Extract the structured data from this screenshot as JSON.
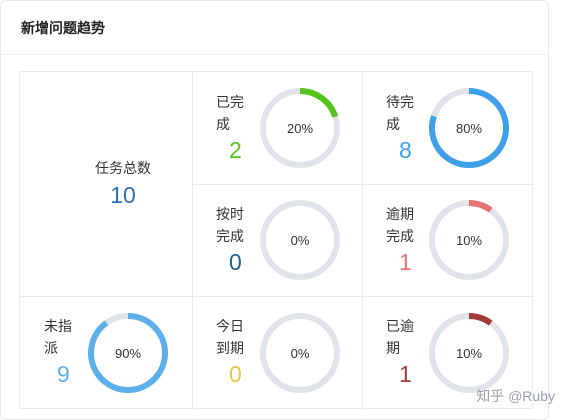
{
  "panel": {
    "title": "新增问题趋势"
  },
  "total": {
    "label": "任务总数",
    "value": "10",
    "color": "#2f6fb5"
  },
  "cells": [
    {
      "key": "completed",
      "label": "已完\n成",
      "value": "2",
      "percent": 20,
      "percent_label": "20%",
      "color": "#52c41a"
    },
    {
      "key": "pending",
      "label": "待完\n成",
      "value": "8",
      "percent": 80,
      "percent_label": "80%",
      "color": "#3fa0ea"
    },
    {
      "key": "on_time",
      "label": "按时\n完成",
      "value": "0",
      "percent": 0,
      "percent_label": "0%",
      "color": "#1f5f8f"
    },
    {
      "key": "overdue_done",
      "label": "逾期\n完成",
      "value": "1",
      "percent": 10,
      "percent_label": "10%",
      "color": "#e57373"
    },
    {
      "key": "unassigned",
      "label": "未指\n派",
      "value": "9",
      "percent": 90,
      "percent_label": "90%",
      "color": "#5db0ec"
    },
    {
      "key": "due_today",
      "label": "今日\n到期",
      "value": "0",
      "percent": 0,
      "percent_label": "0%",
      "color": "#e8c53a"
    },
    {
      "key": "overdue",
      "label": "已逾\n期",
      "value": "1",
      "percent": 10,
      "percent_label": "10%",
      "color": "#a33a3a"
    }
  ],
  "ring_track_color": "#e0e3e8",
  "watermark": "知乎 @Ruby"
}
